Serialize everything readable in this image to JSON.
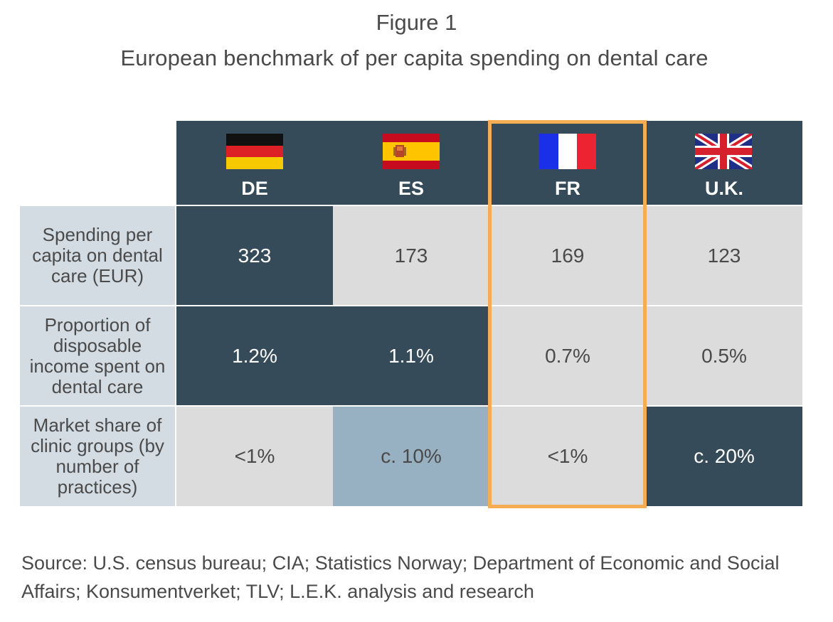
{
  "figure_label": "Figure 1",
  "title": "European benchmark of per capita spending on dental care",
  "chart_data": {
    "type": "table",
    "title": "European benchmark of per capita spending on dental care",
    "columns": [
      {
        "code": "DE",
        "flag": "germany-flag-icon"
      },
      {
        "code": "ES",
        "flag": "spain-flag-icon"
      },
      {
        "code": "FR",
        "flag": "france-flag-icon"
      },
      {
        "code": "U.K.",
        "flag": "uk-flag-icon"
      }
    ],
    "rows": [
      {
        "label": "Spending per capita on dental care (EUR)",
        "values": [
          "323",
          "173",
          "169",
          "123"
        ]
      },
      {
        "label": "Proportion of disposable income spent on dental care",
        "values": [
          "1.2%",
          "1.1%",
          "0.7%",
          "0.5%"
        ]
      },
      {
        "label": "Market share of clinic groups (by number of practices)",
        "values": [
          "<1%",
          "c. 10%",
          "<1%",
          "c. 20%"
        ]
      }
    ],
    "highlighted_column": "FR",
    "colors": {
      "dark": "#364b59",
      "light": "#dcdcdc",
      "mid": "#97b1c2",
      "row_label_bg": "#d3dce3",
      "highlight_border": "#f5ad54"
    }
  },
  "source": "Source: U.S. census bureau; CIA; Statistics Norway; Department of Economic and Social Affairs; Konsumentverket; TLV; L.E.K. analysis and research"
}
